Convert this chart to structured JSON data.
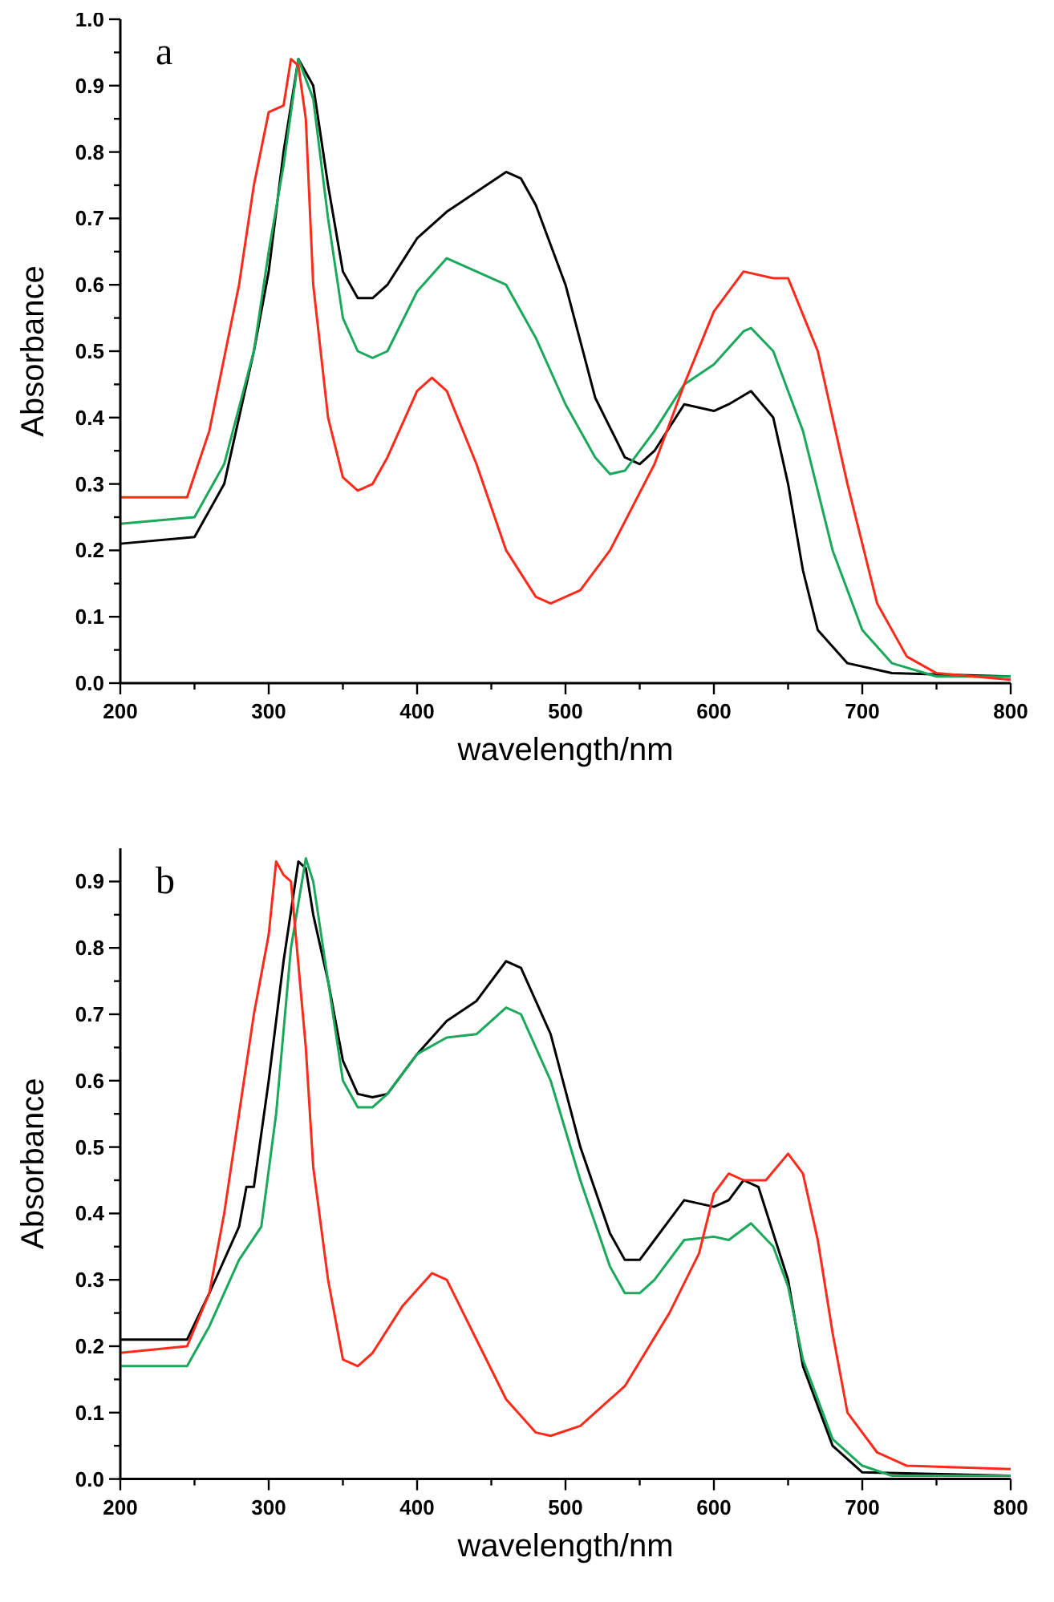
{
  "chart_data": [
    {
      "type": "line",
      "xlabel": "wavelength/nm",
      "ylabel": "Absorbance",
      "annotations": [
        "a"
      ],
      "xlim": [
        200,
        800
      ],
      "ylim": [
        0,
        1.0
      ],
      "xticks": [
        200,
        {
          "value": 250,
          "label": null
        },
        300,
        {
          "value": 350,
          "label": null
        },
        400,
        {
          "value": 450,
          "label": null
        },
        500,
        {
          "value": 550,
          "label": null
        },
        600,
        {
          "value": 650,
          "label": null
        },
        700,
        {
          "value": 750,
          "label": null
        },
        800
      ],
      "yticks": [
        {
          "value": 0,
          "label": "0.0"
        },
        {
          "value": 0.05,
          "label": null
        },
        0.1,
        {
          "value": 0.15,
          "label": null
        },
        0.2,
        {
          "value": 0.25,
          "label": null
        },
        0.3,
        {
          "value": 0.35,
          "label": null
        },
        0.4,
        {
          "value": 0.45,
          "label": null
        },
        0.5,
        {
          "value": 0.55,
          "label": null
        },
        0.6,
        {
          "value": 0.65,
          "label": null
        },
        0.7,
        {
          "value": 0.75,
          "label": null
        },
        0.8,
        {
          "value": 0.85,
          "label": null
        },
        0.9,
        {
          "value": 0.95,
          "label": null
        },
        {
          "value": 1.0,
          "label": "1.0"
        }
      ],
      "series": [
        {
          "color": "#000000",
          "x": [
            200,
            250,
            270,
            290,
            300,
            310,
            320,
            330,
            340,
            350,
            360,
            370,
            380,
            400,
            420,
            440,
            460,
            470,
            480,
            500,
            520,
            540,
            550,
            560,
            580,
            600,
            610,
            625,
            640,
            650,
            660,
            670,
            690,
            720,
            800
          ],
          "values": [
            0.21,
            0.22,
            0.3,
            0.5,
            0.62,
            0.8,
            0.94,
            0.9,
            0.75,
            0.62,
            0.58,
            0.58,
            0.6,
            0.67,
            0.71,
            0.74,
            0.77,
            0.76,
            0.72,
            0.6,
            0.43,
            0.34,
            0.33,
            0.35,
            0.42,
            0.41,
            0.42,
            0.44,
            0.4,
            0.3,
            0.17,
            0.08,
            0.03,
            0.015,
            0.01
          ]
        },
        {
          "color": "#1aa95b",
          "x": [
            200,
            250,
            270,
            290,
            300,
            310,
            320,
            330,
            340,
            350,
            360,
            370,
            380,
            400,
            420,
            440,
            460,
            480,
            500,
            520,
            530,
            540,
            560,
            580,
            600,
            620,
            625,
            640,
            660,
            680,
            700,
            720,
            750,
            800
          ],
          "values": [
            0.24,
            0.25,
            0.33,
            0.5,
            0.65,
            0.78,
            0.94,
            0.88,
            0.7,
            0.55,
            0.5,
            0.49,
            0.5,
            0.59,
            0.64,
            0.62,
            0.6,
            0.52,
            0.42,
            0.34,
            0.315,
            0.32,
            0.38,
            0.45,
            0.48,
            0.53,
            0.535,
            0.5,
            0.38,
            0.2,
            0.08,
            0.03,
            0.01,
            0.01
          ]
        },
        {
          "color": "#ff2a1a",
          "x": [
            200,
            245,
            260,
            280,
            290,
            300,
            310,
            315,
            320,
            325,
            330,
            340,
            350,
            360,
            370,
            380,
            400,
            410,
            420,
            440,
            460,
            480,
            490,
            510,
            530,
            560,
            580,
            600,
            620,
            640,
            650,
            670,
            690,
            710,
            730,
            750,
            800
          ],
          "values": [
            0.28,
            0.28,
            0.38,
            0.6,
            0.75,
            0.86,
            0.87,
            0.94,
            0.93,
            0.85,
            0.6,
            0.4,
            0.31,
            0.29,
            0.3,
            0.34,
            0.44,
            0.46,
            0.44,
            0.33,
            0.2,
            0.13,
            0.12,
            0.14,
            0.2,
            0.33,
            0.45,
            0.56,
            0.62,
            0.61,
            0.61,
            0.5,
            0.3,
            0.12,
            0.04,
            0.015,
            0.005
          ]
        }
      ]
    },
    {
      "type": "line",
      "xlabel": "wavelength/nm",
      "ylabel": "Absorbance",
      "annotations": [
        "b"
      ],
      "xlim": [
        200,
        800
      ],
      "ylim": [
        0,
        0.95
      ],
      "xticks": [
        200,
        {
          "value": 250,
          "label": null
        },
        300,
        {
          "value": 350,
          "label": null
        },
        400,
        {
          "value": 450,
          "label": null
        },
        500,
        {
          "value": 550,
          "label": null
        },
        600,
        {
          "value": 650,
          "label": null
        },
        700,
        {
          "value": 750,
          "label": null
        },
        800
      ],
      "yticks": [
        {
          "value": 0,
          "label": "0.0"
        },
        {
          "value": 0.05,
          "label": null
        },
        0.1,
        {
          "value": 0.15,
          "label": null
        },
        0.2,
        {
          "value": 0.25,
          "label": null
        },
        0.3,
        {
          "value": 0.35,
          "label": null
        },
        0.4,
        {
          "value": 0.45,
          "label": null
        },
        0.5,
        {
          "value": 0.55,
          "label": null
        },
        0.6,
        {
          "value": 0.65,
          "label": null
        },
        0.7,
        {
          "value": 0.75,
          "label": null
        },
        0.8,
        {
          "value": 0.85,
          "label": null
        },
        0.9
      ],
      "series": [
        {
          "color": "#000000",
          "x": [
            200,
            245,
            260,
            280,
            285,
            290,
            300,
            310,
            320,
            325,
            330,
            340,
            350,
            360,
            370,
            380,
            400,
            420,
            440,
            460,
            470,
            490,
            510,
            530,
            540,
            550,
            560,
            580,
            600,
            610,
            620,
            630,
            650,
            660,
            680,
            700,
            800
          ],
          "values": [
            0.21,
            0.21,
            0.28,
            0.38,
            0.44,
            0.44,
            0.6,
            0.78,
            0.93,
            0.92,
            0.85,
            0.75,
            0.63,
            0.58,
            0.575,
            0.58,
            0.64,
            0.69,
            0.72,
            0.78,
            0.77,
            0.67,
            0.5,
            0.37,
            0.33,
            0.33,
            0.36,
            0.42,
            0.41,
            0.42,
            0.45,
            0.44,
            0.3,
            0.17,
            0.05,
            0.01,
            0.005
          ]
        },
        {
          "color": "#1aa95b",
          "x": [
            200,
            245,
            260,
            280,
            295,
            305,
            315,
            325,
            330,
            340,
            350,
            360,
            370,
            380,
            400,
            420,
            440,
            460,
            470,
            490,
            510,
            530,
            540,
            550,
            560,
            580,
            600,
            610,
            625,
            640,
            650,
            660,
            680,
            700,
            720,
            800
          ],
          "values": [
            0.17,
            0.17,
            0.23,
            0.33,
            0.38,
            0.55,
            0.8,
            0.935,
            0.9,
            0.75,
            0.6,
            0.56,
            0.56,
            0.58,
            0.64,
            0.665,
            0.67,
            0.71,
            0.7,
            0.6,
            0.45,
            0.32,
            0.28,
            0.28,
            0.3,
            0.36,
            0.365,
            0.36,
            0.385,
            0.35,
            0.29,
            0.18,
            0.06,
            0.02,
            0.005,
            0.005
          ]
        },
        {
          "color": "#ff2a1a",
          "x": [
            200,
            245,
            260,
            270,
            280,
            290,
            300,
            305,
            310,
            315,
            325,
            330,
            340,
            350,
            360,
            370,
            390,
            410,
            420,
            440,
            460,
            480,
            490,
            510,
            540,
            570,
            590,
            600,
            610,
            620,
            635,
            650,
            660,
            670,
            680,
            690,
            710,
            730,
            800
          ],
          "values": [
            0.19,
            0.2,
            0.28,
            0.4,
            0.55,
            0.7,
            0.82,
            0.93,
            0.91,
            0.9,
            0.65,
            0.47,
            0.3,
            0.18,
            0.17,
            0.19,
            0.26,
            0.31,
            0.3,
            0.21,
            0.12,
            0.07,
            0.065,
            0.08,
            0.14,
            0.25,
            0.34,
            0.43,
            0.46,
            0.45,
            0.45,
            0.49,
            0.46,
            0.36,
            0.22,
            0.1,
            0.04,
            0.02,
            0.015
          ]
        }
      ]
    }
  ]
}
